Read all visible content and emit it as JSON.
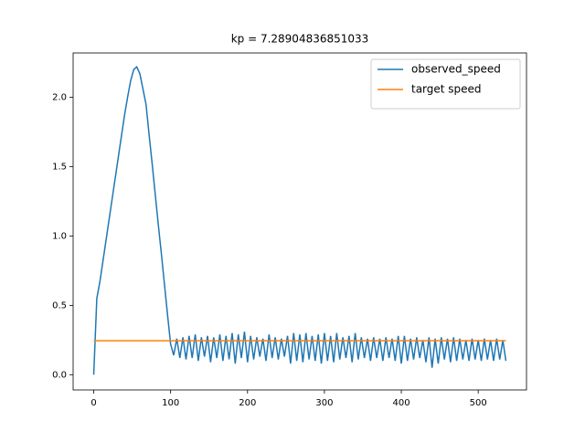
{
  "chart_data": {
    "type": "line",
    "title": "kp = 7.28904836851033",
    "xlim": [
      -26.8,
      562.8
    ],
    "ylim": [
      -0.11,
      2.32
    ],
    "xticks": [
      0,
      100,
      200,
      300,
      400,
      500
    ],
    "yticks": [
      {
        "value": 0,
        "label": "0.0"
      },
      0.5,
      {
        "value": 1,
        "label": "1.0"
      },
      1.5,
      {
        "value": 2,
        "label": "2.0"
      }
    ],
    "grid": false,
    "legend": "upper right",
    "series": [
      {
        "name": "observed_speed",
        "color": "#1f77b4",
        "x": [
          0,
          4,
          8,
          12,
          16,
          20,
          24,
          28,
          32,
          36,
          40,
          44,
          48,
          52,
          56,
          60,
          64,
          68,
          72,
          76,
          80,
          84,
          88,
          92,
          96,
          100,
          104,
          108,
          112,
          116,
          120,
          124,
          128,
          132,
          136,
          140,
          144,
          148,
          152,
          156,
          160,
          164,
          168,
          172,
          176,
          180,
          184,
          188,
          192,
          196,
          200,
          204,
          208,
          212,
          216,
          220,
          224,
          228,
          232,
          236,
          240,
          244,
          248,
          252,
          256,
          260,
          264,
          268,
          272,
          276,
          280,
          284,
          288,
          292,
          296,
          300,
          304,
          308,
          312,
          316,
          320,
          324,
          328,
          332,
          336,
          340,
          344,
          348,
          352,
          356,
          360,
          364,
          368,
          372,
          376,
          380,
          384,
          388,
          392,
          396,
          400,
          404,
          408,
          412,
          416,
          420,
          424,
          428,
          432,
          436,
          440,
          444,
          448,
          452,
          456,
          460,
          464,
          468,
          472,
          476,
          480,
          484,
          488,
          492,
          496,
          500,
          504,
          508,
          512,
          516,
          520,
          524,
          528,
          532,
          536
        ],
        "values": [
          0,
          0.55,
          0.67,
          0.82,
          0.97,
          1.12,
          1.27,
          1.42,
          1.57,
          1.72,
          1.87,
          2.0,
          2.12,
          2.2,
          2.22,
          2.17,
          2.06,
          1.95,
          1.73,
          1.52,
          1.3,
          1.08,
          0.87,
          0.65,
          0.43,
          0.22,
          0.14,
          0.26,
          0.12,
          0.27,
          0.11,
          0.28,
          0.12,
          0.29,
          0.1,
          0.27,
          0.13,
          0.28,
          0.09,
          0.27,
          0.12,
          0.29,
          0.1,
          0.28,
          0.11,
          0.3,
          0.08,
          0.29,
          0.12,
          0.31,
          0.09,
          0.28,
          0.11,
          0.27,
          0.13,
          0.26,
          0.1,
          0.29,
          0.12,
          0.27,
          0.11,
          0.26,
          0.13,
          0.28,
          0.08,
          0.3,
          0.1,
          0.29,
          0.09,
          0.3,
          0.11,
          0.28,
          0.1,
          0.29,
          0.08,
          0.3,
          0.1,
          0.28,
          0.09,
          0.3,
          0.11,
          0.27,
          0.12,
          0.28,
          0.09,
          0.3,
          0.11,
          0.27,
          0.12,
          0.26,
          0.1,
          0.27,
          0.12,
          0.26,
          0.1,
          0.27,
          0.12,
          0.26,
          0.1,
          0.28,
          0.08,
          0.28,
          0.1,
          0.26,
          0.11,
          0.27,
          0.12,
          0.25,
          0.09,
          0.27,
          0.05,
          0.26,
          0.08,
          0.27,
          0.11,
          0.26,
          0.09,
          0.27,
          0.1,
          0.26,
          0.11,
          0.25,
          0.1,
          0.26,
          0.11,
          0.25,
          0.1,
          0.26,
          0.11,
          0.25,
          0.1,
          0.26,
          0.11,
          0.25,
          0.1
        ]
      },
      {
        "name": "target speed",
        "color": "#ff7f0e",
        "x": [
          0,
          536
        ],
        "values": [
          0.245,
          0.245
        ]
      }
    ]
  }
}
